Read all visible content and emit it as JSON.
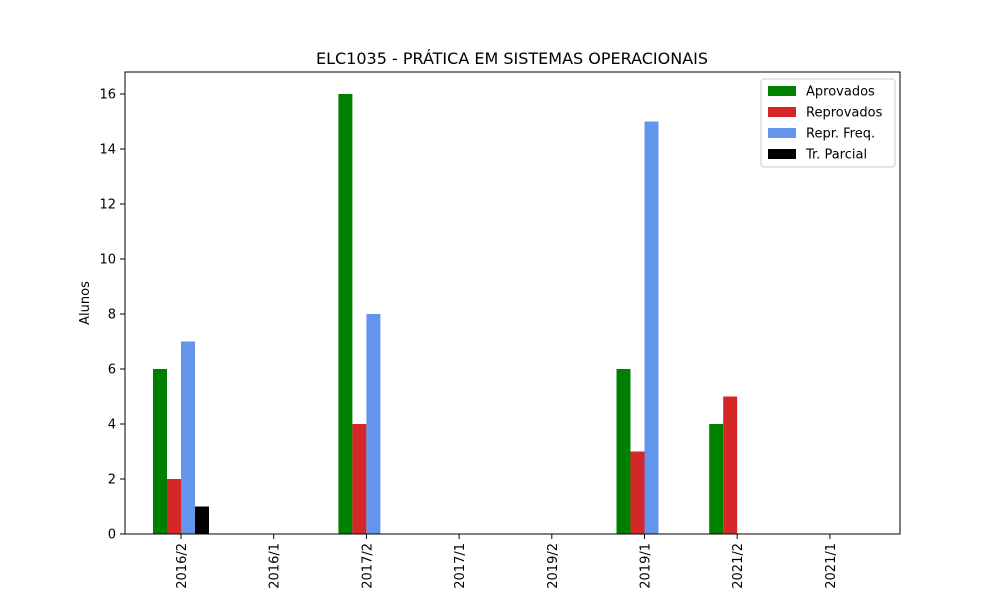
{
  "chart_data": {
    "type": "bar",
    "title": "ELC1035 - PRÁTICA EM SISTEMAS OPERACIONAIS",
    "xlabel": "",
    "ylabel": "Alunos",
    "categories": [
      "2016/2",
      "2016/1",
      "2017/2",
      "2017/1",
      "2019/2",
      "2019/1",
      "2021/2",
      "2021/1"
    ],
    "series": [
      {
        "name": "Aprovados",
        "color": "#008000",
        "values": [
          6,
          0,
          16,
          0,
          0,
          6,
          4,
          0
        ]
      },
      {
        "name": "Reprovados",
        "color": "#d62728",
        "values": [
          2,
          0,
          4,
          0,
          0,
          3,
          5,
          0
        ]
      },
      {
        "name": "Repr. Freq.",
        "color": "#6495ed",
        "values": [
          7,
          0,
          8,
          0,
          0,
          15,
          0,
          0
        ]
      },
      {
        "name": "Tr. Parcial",
        "color": "#000000",
        "values": [
          1,
          0,
          0,
          0,
          0,
          0,
          0,
          0
        ]
      }
    ],
    "yticks": [
      0,
      2,
      4,
      6,
      8,
      10,
      12,
      14,
      16
    ],
    "ylim": [
      0,
      16.8
    ],
    "grid": false,
    "legend_position": "top-right"
  }
}
